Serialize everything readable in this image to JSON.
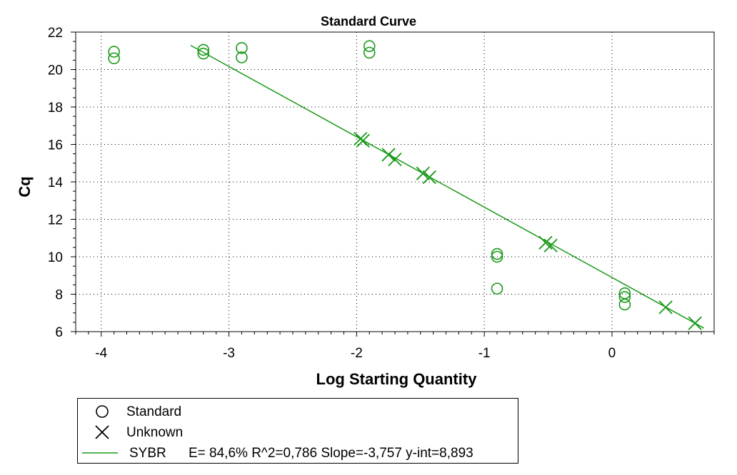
{
  "chart_data": {
    "type": "scatter",
    "title": "Standard Curve",
    "xlabel": "Log Starting Quantity",
    "ylabel": "Cq",
    "xlim": [
      -4.2,
      0.8
    ],
    "ylim": [
      6,
      22
    ],
    "xticks": [
      -4,
      -3,
      -2,
      -1,
      0
    ],
    "yticks": [
      6,
      8,
      10,
      12,
      14,
      16,
      18,
      20,
      22
    ],
    "grid": true,
    "series": [
      {
        "name": "Standard",
        "marker": "circle",
        "color": "#1a9a1a",
        "points": [
          {
            "x": -3.9,
            "y": 20.95
          },
          {
            "x": -3.9,
            "y": 20.6
          },
          {
            "x": -3.2,
            "y": 21.05
          },
          {
            "x": -3.2,
            "y": 20.85
          },
          {
            "x": -2.9,
            "y": 21.15
          },
          {
            "x": -2.9,
            "y": 20.65
          },
          {
            "x": -1.9,
            "y": 21.25
          },
          {
            "x": -1.9,
            "y": 20.9
          },
          {
            "x": -0.9,
            "y": 10.15
          },
          {
            "x": -0.9,
            "y": 10.0
          },
          {
            "x": -0.9,
            "y": 8.3
          },
          {
            "x": 0.1,
            "y": 8.05
          },
          {
            "x": 0.1,
            "y": 7.85
          },
          {
            "x": 0.1,
            "y": 7.45
          }
        ]
      },
      {
        "name": "Unknown",
        "marker": "x",
        "color": "#1a9a1a",
        "points": [
          {
            "x": -1.97,
            "y": 16.3
          },
          {
            "x": -1.95,
            "y": 16.2
          },
          {
            "x": -1.75,
            "y": 15.45
          },
          {
            "x": -1.7,
            "y": 15.2
          },
          {
            "x": -1.48,
            "y": 14.45
          },
          {
            "x": -1.43,
            "y": 14.25
          },
          {
            "x": -0.52,
            "y": 10.75
          },
          {
            "x": -0.48,
            "y": 10.6
          },
          {
            "x": 0.42,
            "y": 7.3
          },
          {
            "x": 0.65,
            "y": 6.45
          }
        ]
      }
    ],
    "fit": {
      "name": "SYBR",
      "color": "#1a9a1a",
      "slope": -3.757,
      "intercept": 8.893,
      "x_range": [
        -3.3,
        0.72
      ],
      "stats": "E= 84,6% R^2=0,786 Slope=-3,757 y-int=8,893"
    },
    "legend": {
      "position": "bottom-left",
      "entries": [
        "Standard",
        "Unknown"
      ]
    }
  }
}
